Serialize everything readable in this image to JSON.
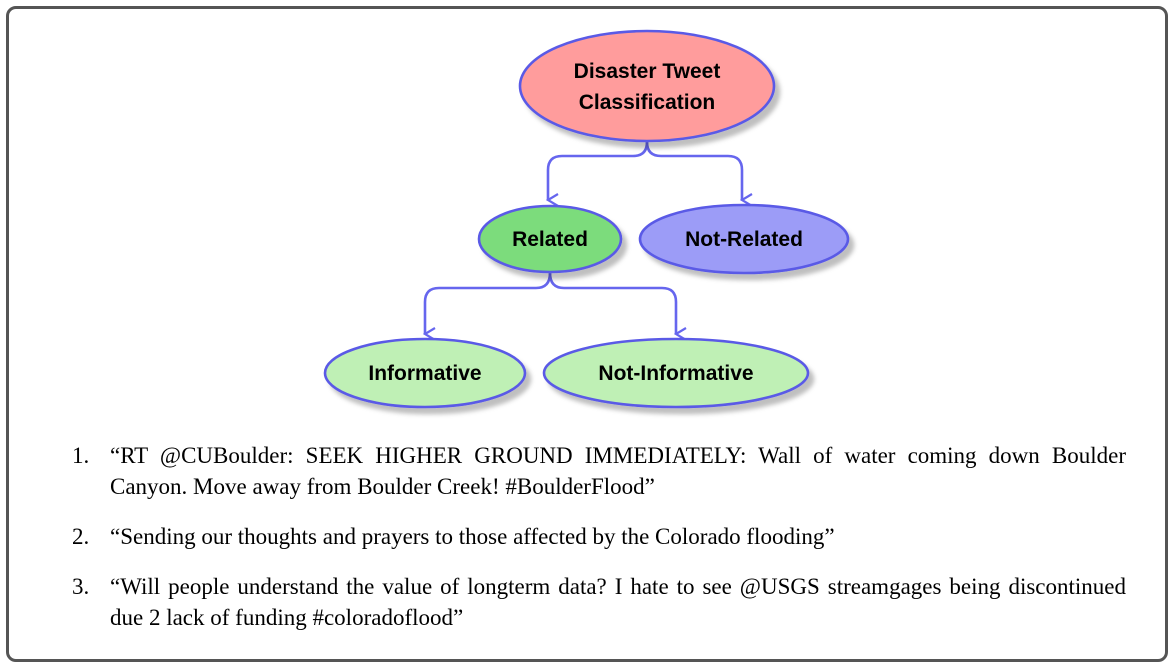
{
  "diagram": {
    "root": {
      "line1": "Disaster Tweet",
      "line2": "Classification",
      "color": "#ff9c9c"
    },
    "related": {
      "label": "Related",
      "color": "#7bdc7b"
    },
    "not_related": {
      "label": "Not-Related",
      "color": "#9c9cf7"
    },
    "informative": {
      "label": "Informative",
      "color": "#bff0b5"
    },
    "not_informative": {
      "label": "Not-Informative",
      "color": "#bff0b5"
    },
    "edge_color": "#6666ee",
    "node_border": "#5a5ae6"
  },
  "tweets": [
    {
      "num": "1.",
      "text": "“RT @CUBoulder: SEEK HIGHER GROUND IMMEDIATELY: Wall of water coming down Boulder Canyon. Move away from Boulder Creek! #BoulderFlood”"
    },
    {
      "num": "2.",
      "text": "“Sending our thoughts and prayers to those affected by the Colorado flooding”"
    },
    {
      "num": "3.",
      "text": "“Will people understand the value of longterm data? I hate to see @USGS streamgages being discontinued due 2 lack of funding #coloradoflood”"
    }
  ]
}
